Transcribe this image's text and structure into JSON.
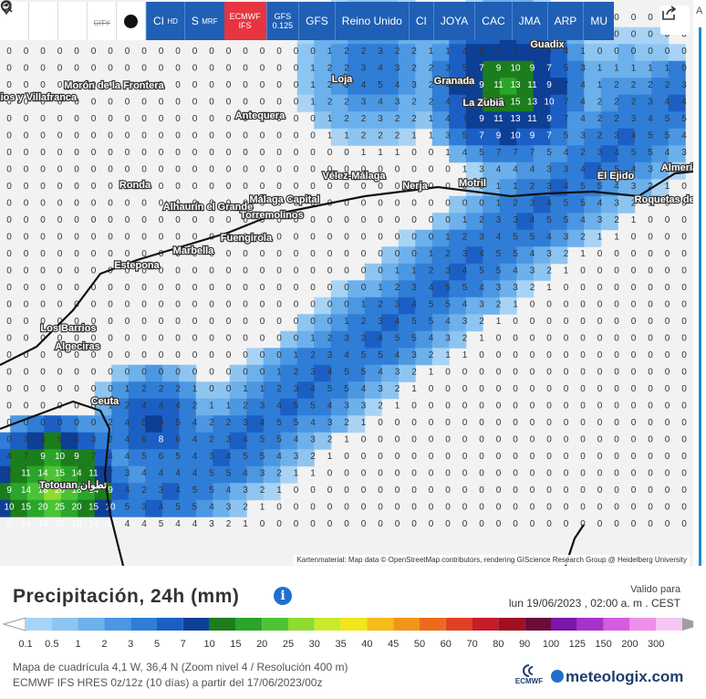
{
  "toolbar": {
    "buttons": [
      {
        "label": "CI",
        "sub": "HD"
      },
      {
        "label": "S",
        "sub": "MRF"
      },
      {
        "label": "ECMWF",
        "sub": "IFS",
        "active": true
      },
      {
        "label": "GFS",
        "sub": "0.125"
      },
      {
        "label": "GFS",
        "sub": ""
      },
      {
        "label": "Reino Unido",
        "sub": ""
      },
      {
        "label": "CI",
        "sub": ""
      },
      {
        "label": "JOYA",
        "sub": ""
      },
      {
        "label": "CAC",
        "sub": ""
      },
      {
        "label": "JMA",
        "sub": ""
      },
      {
        "label": "ARP",
        "sub": ""
      },
      {
        "label": "MU",
        "sub": ""
      }
    ],
    "city_label": "CITY",
    "icons": [
      "refresh-icon",
      "location-pin-icon",
      "zoom-out-icon",
      "city-toggle-icon",
      "dot-icon",
      "share-icon"
    ]
  },
  "map": {
    "places": [
      {
        "name": "Guadix"
      },
      {
        "name": "Morón de la Frontera"
      },
      {
        "name": "Loja"
      },
      {
        "name": "Granada"
      },
      {
        "name": "Palacios y Villafranca"
      },
      {
        "name": "La Zubia"
      },
      {
        "name": "Antequera"
      },
      {
        "name": "Vélez-Málaga"
      },
      {
        "name": "Nerja"
      },
      {
        "name": "Motril"
      },
      {
        "name": "El Ejido"
      },
      {
        "name": "Ronda"
      },
      {
        "name": "Alhaurín el Grande"
      },
      {
        "name": "Málaga Capital"
      },
      {
        "name": "Torremolinos"
      },
      {
        "name": "Fuengirola"
      },
      {
        "name": "Marbella"
      },
      {
        "name": "Estepona"
      },
      {
        "name": "Los Barrios"
      },
      {
        "name": "Algeciras"
      },
      {
        "name": "Ceuta"
      },
      {
        "name": "Tetouan تطوان"
      },
      {
        "name": "Almería"
      },
      {
        "name": "Roquetas de Mar"
      }
    ],
    "attribution": "Kartenmaterial: Map data © OpenStreetMap contributors, rendering GIScience Research Group @ Heidelberg University"
  },
  "legend": {
    "title": "Precipitación, 24h (mm)",
    "valid_label": "Valido para",
    "valid_date": "lun 19/06/2023 , 02:00 a. m . CEST",
    "ticks": [
      "0.1",
      "0.5",
      "1",
      "2",
      "3",
      "5",
      "7",
      "10",
      "15",
      "20",
      "25",
      "30",
      "35",
      "40",
      "45",
      "50",
      "60",
      "70",
      "80",
      "90",
      "100",
      "125",
      "150",
      "200",
      "300"
    ],
    "colors": [
      "#a9d3f5",
      "#8ec5f0",
      "#6cb0ec",
      "#4b97e2",
      "#2f7dd6",
      "#1c5fc4",
      "#0d3f95",
      "#1c7d1c",
      "#2aa52a",
      "#4cc337",
      "#8fdc2f",
      "#c8ea2a",
      "#f2e61d",
      "#f6bd1a",
      "#f2951b",
      "#ec6a1c",
      "#e04024",
      "#c81b2a",
      "#a1101f",
      "#6b0c3a",
      "#7b17a8",
      "#a632c9",
      "#d45ce0",
      "#ef8fe9",
      "#f5c6f2",
      "#d9d9d9",
      "#bfbfbf"
    ],
    "meta1": "Mapa de cuadrícula 4,1 W, 36,4 N (Zoom nivel 4 / Resolución 400 m)",
    "meta2": "ECMWF IFS HRES 0z/12z (10 días) a partir del 17/06/2023/00z",
    "ecmwf_logo": "ECMWF",
    "brand": "meteologix.com"
  },
  "right_strip": {
    "letter": "A"
  }
}
